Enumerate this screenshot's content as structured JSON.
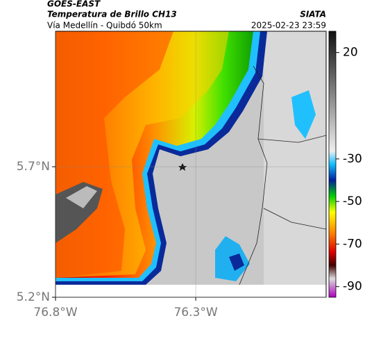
{
  "map": {
    "header": {
      "source": "GOES-EAST",
      "title": "Temperatura de Brillo CH13",
      "route": "Vía Medellín - Quibdó 50km",
      "org": "SIATA",
      "datetime": "2025-02-23 23:59"
    },
    "xlim": [
      -76.8,
      -75.835
    ],
    "ylim": [
      5.2,
      6.219
    ],
    "xticks": [
      {
        "value": -76.8,
        "label": "76.8°W"
      },
      {
        "value": -76.3,
        "label": "76.3°W"
      }
    ],
    "yticks": [
      {
        "value": 5.2,
        "label": "5.2°N"
      },
      {
        "value": 5.7,
        "label": "5.7°N"
      }
    ],
    "colorbar": {
      "lim": [
        -95,
        30
      ],
      "ticks": [
        20,
        -30,
        -50,
        -70,
        -90
      ]
    }
  }
}
